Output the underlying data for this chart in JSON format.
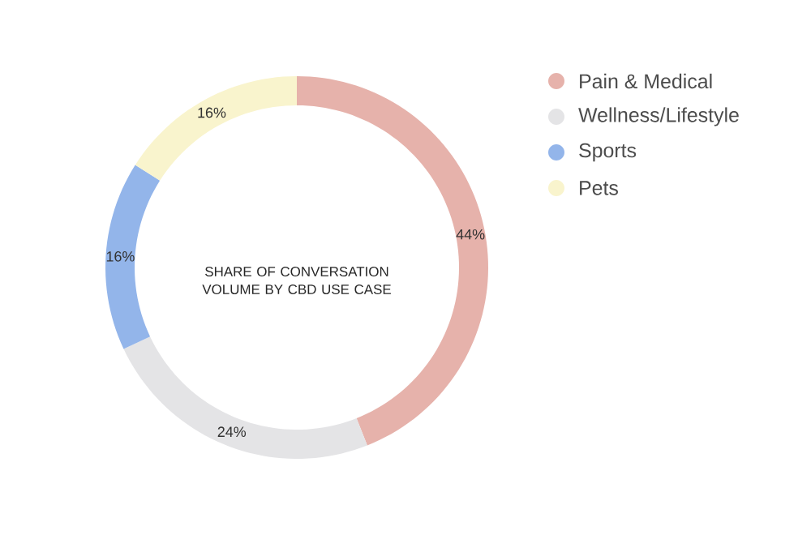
{
  "chart_data": {
    "type": "donut",
    "title": "SHARE OF CONVERSATION VOLUME BY CBD USE CASE",
    "categories": [
      "Pain & Medical",
      "Wellness/Lifestyle",
      "Sports",
      "Pets"
    ],
    "values": [
      44,
      24,
      16,
      16
    ],
    "value_labels": [
      "44%",
      "24%",
      "16%",
      "16%"
    ],
    "colors": [
      "#e6b2ab",
      "#e4e4e6",
      "#93b5ea",
      "#f9f4cd"
    ],
    "legend": "top right"
  }
}
